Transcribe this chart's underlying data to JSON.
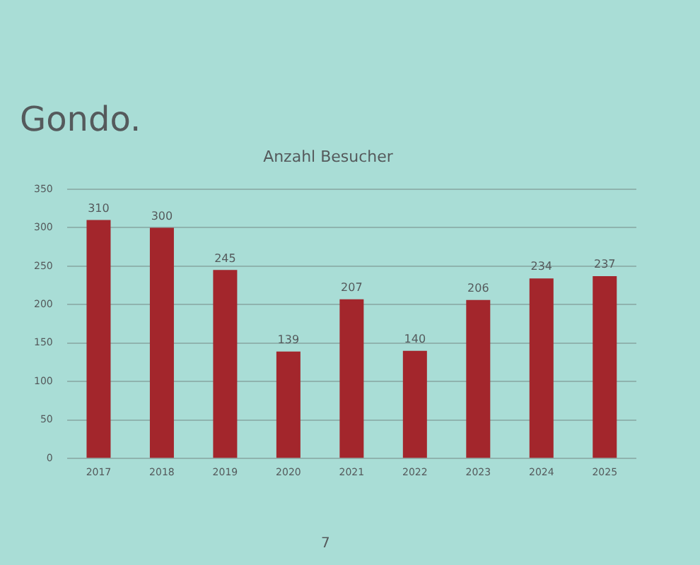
{
  "chart_data": {
    "type": "bar",
    "title": "Gondo.",
    "subtitle": "Anzahl Besucher",
    "categories": [
      "2017",
      "2018",
      "2019",
      "2020",
      "2021",
      "2022",
      "2023",
      "2024",
      "2025"
    ],
    "values": [
      310,
      300,
      245,
      139,
      207,
      140,
      206,
      234,
      237
    ],
    "color": "#a3262c",
    "ylim": [
      0,
      350
    ],
    "yticks": [
      0,
      50,
      100,
      150,
      200,
      250,
      300,
      350
    ],
    "grid": "y",
    "data_labels": true,
    "annotations": [
      "7"
    ]
  }
}
